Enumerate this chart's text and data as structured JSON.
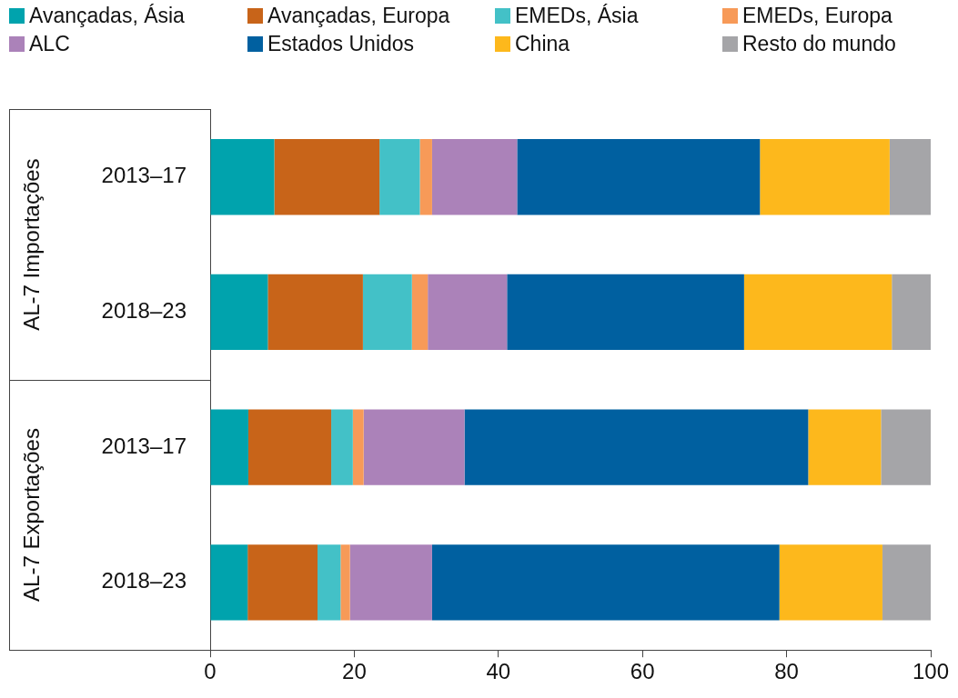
{
  "chart_data": {
    "type": "bar",
    "orientation": "horizontal",
    "stacked": true,
    "legend": "top",
    "grid": false,
    "categories": [
      "2013–17",
      "2018–23",
      "2013–17",
      "2018–23"
    ],
    "annotations": [
      "AL-7 Importações",
      "AL-7 Exportações"
    ],
    "xlim": [
      0,
      100
    ],
    "xticks": [
      0,
      20,
      40,
      60,
      80,
      100
    ],
    "series": [
      {
        "name": "Avançadas, Ásia",
        "color": "#00a3ad",
        "values": [
          8.9,
          8.0,
          5.3,
          5.2
        ]
      },
      {
        "name": "Avançadas, Europa",
        "color": "#c86419",
        "values": [
          14.6,
          13.2,
          11.5,
          9.7
        ]
      },
      {
        "name": "EMEDs, Ásia",
        "color": "#43c1c7",
        "values": [
          5.6,
          6.8,
          3.0,
          3.2
        ]
      },
      {
        "name": "EMEDs, Europa",
        "color": "#f79a58",
        "values": [
          1.7,
          2.2,
          1.5,
          1.3
        ]
      },
      {
        "name": "ALC",
        "color": "#ab82b9",
        "values": [
          11.8,
          11.0,
          14.0,
          11.4
        ]
      },
      {
        "name": "Estados Unidos",
        "color": "#0060a0",
        "values": [
          33.7,
          32.9,
          47.7,
          48.2
        ]
      },
      {
        "name": "China",
        "color": "#fdb81c",
        "values": [
          18.0,
          20.5,
          10.1,
          14.3
        ]
      },
      {
        "name": "Resto do mundo",
        "color": "#a5a5a8",
        "values": [
          5.7,
          5.4,
          6.9,
          6.7
        ]
      }
    ]
  }
}
